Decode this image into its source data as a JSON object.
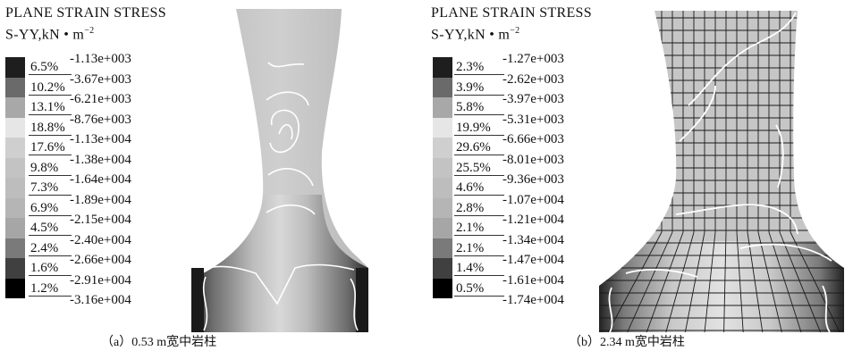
{
  "panels": [
    {
      "title_line1": "PLANE STRAIN STRESS",
      "title_line2": "S-YY,kN • m",
      "title_sup": "−2",
      "caption": "（a）0.53 m宽中岩柱",
      "legend": [
        {
          "pct": "6.5%",
          "val": "-1.13e+003",
          "color": "#1e1e1e"
        },
        {
          "pct": "10.2%",
          "val": "-3.67e+003",
          "color": "#6a6a6a"
        },
        {
          "pct": "13.1%",
          "val": "-6.21e+003",
          "color": "#a8a8a8"
        },
        {
          "pct": "18.8%",
          "val": "-8.76e+003",
          "color": "#e6e6e6"
        },
        {
          "pct": "17.6%",
          "val": "-1.13e+004",
          "color": "#cfcfcf"
        },
        {
          "pct": "9.8%",
          "val": "-1.38e+004",
          "color": "#c3c3c3"
        },
        {
          "pct": "7.3%",
          "val": "-1.64e+004",
          "color": "#bdbdbd"
        },
        {
          "pct": "6.9%",
          "val": "-1.89e+004",
          "color": "#b5b5b5"
        },
        {
          "pct": "4.5%",
          "val": "-2.15e+004",
          "color": "#a6a6a6"
        },
        {
          "pct": "2.4%",
          "val": "-2.40e+004",
          "color": "#7a7a7a"
        },
        {
          "pct": "1.6%",
          "val": "-2.66e+004",
          "color": "#404040"
        },
        {
          "pct": "1.2%",
          "val": "-2.91e+004",
          "color": "#000000"
        }
      ],
      "last_val": "-3.16e+004"
    },
    {
      "title_line1": "PLANE STRAIN STRESS",
      "title_line2": "S-YY,kN • m",
      "title_sup": "−2",
      "caption": "（b）2.34 m宽中岩柱",
      "legend": [
        {
          "pct": "2.3%",
          "val": "-1.27e+003",
          "color": "#1e1e1e"
        },
        {
          "pct": "3.9%",
          "val": "-2.62e+003",
          "color": "#6a6a6a"
        },
        {
          "pct": "5.8%",
          "val": "-3.97e+003",
          "color": "#a8a8a8"
        },
        {
          "pct": "19.9%",
          "val": "-5.31e+003",
          "color": "#e6e6e6"
        },
        {
          "pct": "29.6%",
          "val": "-6.66e+003",
          "color": "#cfcfcf"
        },
        {
          "pct": "25.5%",
          "val": "-8.01e+003",
          "color": "#c3c3c3"
        },
        {
          "pct": "4.6%",
          "val": "-9.36e+003",
          "color": "#bdbdbd"
        },
        {
          "pct": "2.8%",
          "val": "-1.07e+004",
          "color": "#b5b5b5"
        },
        {
          "pct": "2.1%",
          "val": "-1.21e+004",
          "color": "#a6a6a6"
        },
        {
          "pct": "2.1%",
          "val": "-1.34e+004",
          "color": "#7a7a7a"
        },
        {
          "pct": "1.4%",
          "val": "-1.47e+004",
          "color": "#404040"
        },
        {
          "pct": "0.5%",
          "val": "-1.61e+004",
          "color": "#000000"
        }
      ],
      "last_val": "-1.74e+004"
    }
  ]
}
